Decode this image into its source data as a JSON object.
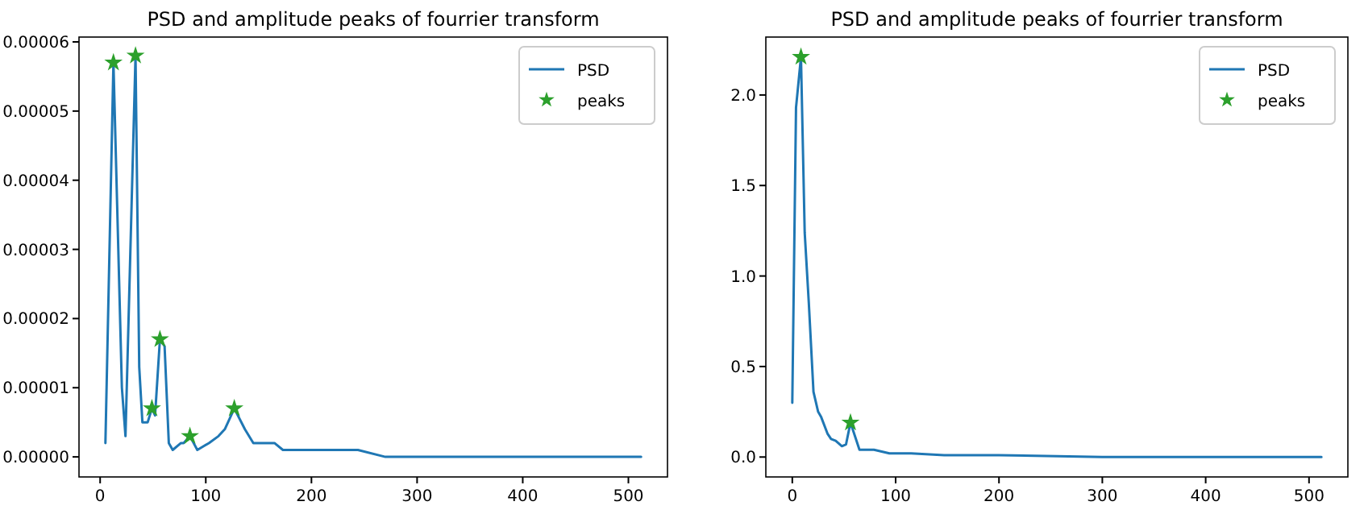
{
  "chart_data": [
    {
      "type": "line",
      "title": "PSD and amplitude peaks of fourrier transform",
      "xlim": [
        -20,
        537
      ],
      "xticks": [
        0,
        100,
        200,
        300,
        400,
        500
      ],
      "ylim": [
        -2.9e-06,
        6.07e-05
      ],
      "yticks": [
        {
          "value": 0,
          "label": "0.00000"
        },
        {
          "value": 1e-05,
          "label": "0.00001"
        },
        {
          "value": 2e-05,
          "label": "0.00002"
        },
        {
          "value": 3e-05,
          "label": "0.00003"
        },
        {
          "value": 4e-05,
          "label": "0.00004"
        },
        {
          "value": 5e-05,
          "label": "0.00005"
        },
        {
          "value": 6e-05,
          "label": "0.00006"
        }
      ],
      "legend": "top right",
      "grid": false,
      "series": [
        {
          "name": "PSD",
          "color": "#1f77b4",
          "x": [
            5,
            12.6,
            20.6,
            24,
            33.5,
            37,
            40,
            45,
            49,
            52,
            56.6,
            61,
            65,
            68.7,
            76.5,
            79,
            85,
            92,
            103,
            112,
            118,
            127,
            137,
            145,
            160,
            165,
            173,
            189,
            200,
            231,
            244,
            270,
            280,
            291,
            307,
            400,
            512
          ],
          "values": [
            2e-06,
            5.7e-05,
            1e-05,
            3e-06,
            5.8e-05,
            1.3e-05,
            5e-06,
            5e-06,
            7e-06,
            6e-06,
            1.7e-05,
            1.6e-05,
            2e-06,
            1e-06,
            2e-06,
            2e-06,
            3e-06,
            1e-06,
            2e-06,
            3e-06,
            4e-06,
            7e-06,
            4e-06,
            2e-06,
            2e-06,
            2e-06,
            1e-06,
            1e-06,
            1e-06,
            1e-06,
            1e-06,
            0,
            0,
            0,
            0,
            0,
            0
          ]
        },
        {
          "name": "peaks",
          "type": "scatter",
          "marker": "star",
          "color": "#2ca02c",
          "x": [
            12.6,
            33.5,
            49,
            56.6,
            85,
            127
          ],
          "values": [
            5.7e-05,
            5.8e-05,
            7e-06,
            1.7e-05,
            3e-06,
            7e-06
          ]
        }
      ]
    },
    {
      "type": "line",
      "title": "PSD and amplitude peaks of fourrier transform",
      "xlim": [
        -25.6,
        537.6
      ],
      "xticks": [
        0,
        100,
        200,
        300,
        400,
        500
      ],
      "ylim": [
        -0.11,
        2.32
      ],
      "yticks": [
        {
          "value": 0,
          "label": "0.0"
        },
        {
          "value": 0.5,
          "label": "0.5"
        },
        {
          "value": 1,
          "label": "1.0"
        },
        {
          "value": 1.5,
          "label": "1.5"
        },
        {
          "value": 2,
          "label": "2.0"
        }
      ],
      "legend": "top right",
      "grid": false,
      "series": [
        {
          "name": "PSD",
          "color": "#1f77b4",
          "x": [
            0,
            3.6,
            8.4,
            12,
            16,
            20.5,
            25,
            28,
            34,
            37.5,
            42,
            48,
            52,
            56.3,
            65,
            79,
            94,
            110,
            115,
            147,
            200,
            300,
            512
          ],
          "values": [
            0.3,
            1.93,
            2.21,
            1.24,
            0.85,
            0.36,
            0.25,
            0.22,
            0.13,
            0.1,
            0.09,
            0.06,
            0.07,
            0.19,
            0.04,
            0.04,
            0.02,
            0.02,
            0.02,
            0.01,
            0.01,
            0,
            0
          ]
        },
        {
          "name": "peaks",
          "type": "scatter",
          "marker": "star",
          "color": "#2ca02c",
          "x": [
            8.4,
            56.3
          ],
          "values": [
            2.21,
            0.19
          ]
        }
      ]
    }
  ]
}
